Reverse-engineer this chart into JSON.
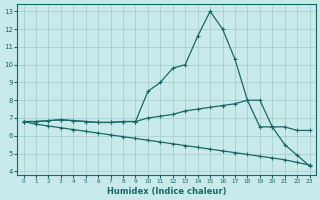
{
  "title": "",
  "xlabel": "Humidex (Indice chaleur)",
  "ylabel": "",
  "bg_color": "#c8eaea",
  "grid_color": "#a8d0d0",
  "line_color": "#1a6868",
  "xlim": [
    -0.5,
    23.5
  ],
  "ylim": [
    3.8,
    13.4
  ],
  "xticks": [
    0,
    1,
    2,
    3,
    4,
    5,
    6,
    7,
    8,
    9,
    10,
    11,
    12,
    13,
    14,
    15,
    16,
    17,
    18,
    19,
    20,
    21,
    22,
    23
  ],
  "yticks": [
    4,
    5,
    6,
    7,
    8,
    9,
    10,
    11,
    12,
    13
  ],
  "line1_x": [
    0,
    1,
    2,
    3,
    4,
    5,
    6,
    7,
    8,
    9,
    10,
    11,
    12,
    13,
    14,
    15,
    16,
    17,
    18,
    19,
    20,
    21,
    22,
    23
  ],
  "line1_y": [
    6.8,
    6.8,
    6.85,
    6.9,
    6.85,
    6.8,
    6.75,
    6.75,
    6.8,
    6.8,
    8.5,
    9.0,
    9.8,
    10.0,
    11.6,
    13.0,
    12.0,
    10.3,
    8.0,
    6.5,
    6.5,
    5.5,
    4.9,
    4.3
  ],
  "line2_x": [
    0,
    1,
    2,
    3,
    4,
    5,
    6,
    7,
    8,
    9,
    10,
    11,
    12,
    13,
    14,
    15,
    16,
    17,
    18,
    19,
    20,
    21,
    22,
    23
  ],
  "line2_y": [
    6.8,
    6.8,
    6.85,
    6.9,
    6.85,
    6.8,
    6.75,
    6.75,
    6.8,
    6.8,
    7.0,
    7.1,
    7.2,
    7.4,
    7.5,
    7.6,
    7.7,
    7.8,
    8.0,
    8.0,
    6.5,
    6.5,
    6.3,
    6.3
  ],
  "line3_x": [
    0,
    1,
    2,
    3,
    4,
    5,
    6,
    7,
    8,
    9,
    10,
    11,
    12,
    13,
    14,
    15,
    16,
    17,
    18,
    19,
    20,
    21,
    22,
    23
  ],
  "line3_y": [
    6.8,
    6.65,
    6.55,
    6.45,
    6.35,
    6.25,
    6.15,
    6.05,
    5.95,
    5.85,
    5.75,
    5.65,
    5.55,
    5.45,
    5.35,
    5.25,
    5.15,
    5.05,
    4.95,
    4.85,
    4.75,
    4.65,
    4.5,
    4.35
  ]
}
